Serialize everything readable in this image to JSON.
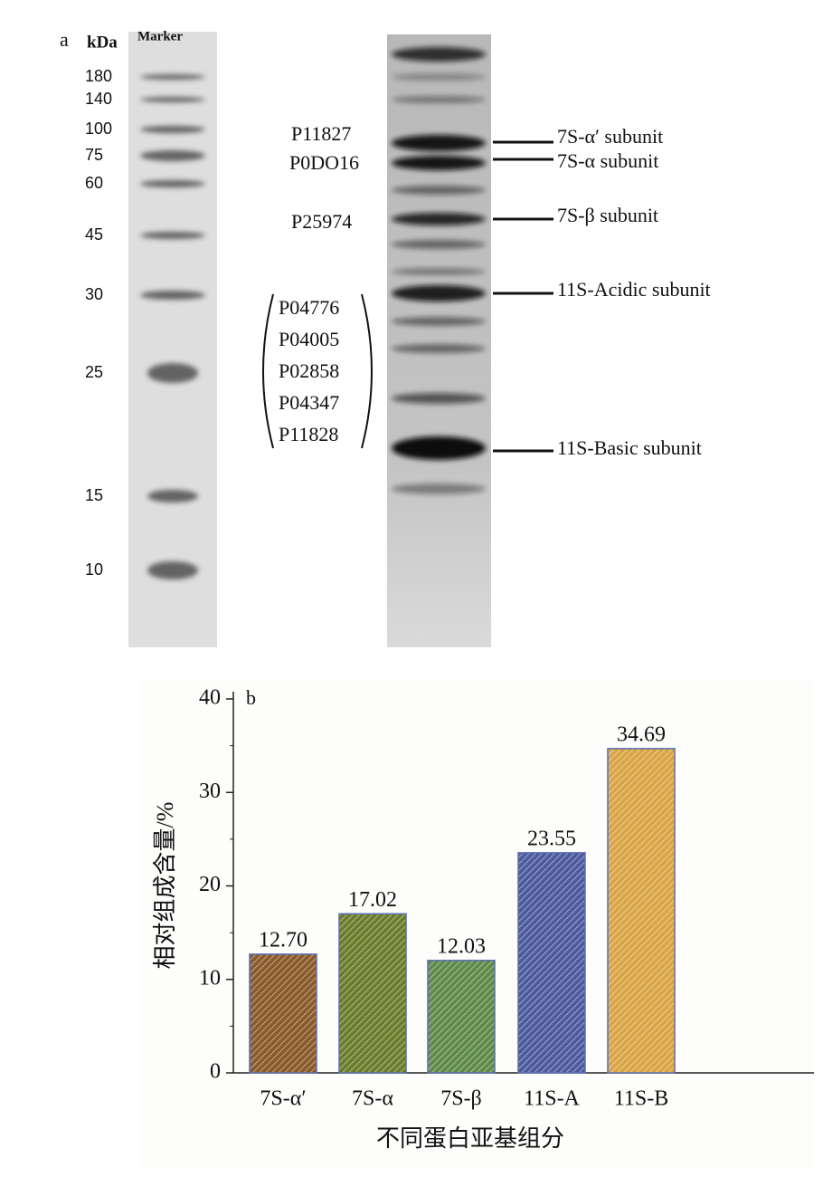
{
  "gel": {
    "panel_label": "a",
    "unit": "kDa",
    "marker_title": "Marker",
    "marker_kda": [
      180,
      140,
      100,
      75,
      60,
      45,
      30,
      25,
      15,
      10
    ],
    "protein_ids": [
      "P11827",
      "P0DO16",
      "P25974"
    ],
    "bracket_ids": [
      "P04776",
      "P04005",
      "P02858",
      "P04347",
      "P11828"
    ],
    "subunits": [
      "7S-α′ subunit",
      "7S-α subunit",
      "7S-β subunit",
      "11S-Acidic subunit",
      "11S-Basic subunit"
    ]
  },
  "chart_data": {
    "type": "bar",
    "panel_label": "b",
    "categories": [
      "7S-α′",
      "7S-α",
      "7S-β",
      "11S-A",
      "11S-B"
    ],
    "values": [
      12.7,
      17.02,
      12.03,
      23.55,
      34.69
    ],
    "value_labels": [
      "12.70",
      "17.02",
      "12.03",
      "23.55",
      "34.69"
    ],
    "colors": [
      "#8b5a2b",
      "#6b7d2c",
      "#5f8a4a",
      "#4d5a9e",
      "#d9a545"
    ],
    "ylim": [
      0,
      40
    ],
    "yticks": [
      0,
      10,
      20,
      30,
      40
    ],
    "y_label": "相对组成含量/%",
    "x_label": "不同蛋白亚基组分"
  }
}
